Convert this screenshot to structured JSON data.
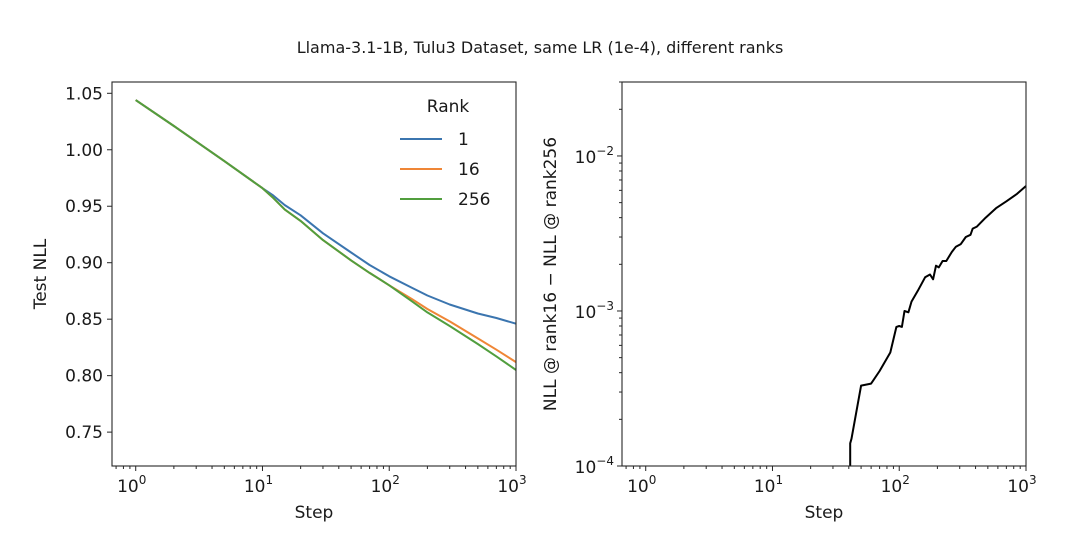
{
  "chart_data": [
    {
      "type": "line",
      "suptitle": "Llama-3.1-1B, Tulu3 Dataset, same LR (1e-4), different ranks",
      "title": "",
      "xlabel": "Step",
      "ylabel": "Test NLL",
      "xscale": "log",
      "xlim": [
        0.65,
        1000
      ],
      "ylim": [
        0.72,
        1.06
      ],
      "xticks": [
        1,
        10,
        100,
        1000
      ],
      "xtick_labels": [
        {
          "base": "10",
          "exp": "0"
        },
        {
          "base": "10",
          "exp": "1"
        },
        {
          "base": "10",
          "exp": "2"
        },
        {
          "base": "10",
          "exp": "3"
        }
      ],
      "yticks": [
        0.75,
        0.8,
        0.85,
        0.9,
        0.95,
        1.0,
        1.05
      ],
      "ytick_labels": [
        "0.75",
        "0.80",
        "0.85",
        "0.90",
        "0.95",
        "1.00",
        "1.05"
      ],
      "grid": false,
      "legend": {
        "title": "Rank",
        "placement": "top-right"
      },
      "series": [
        {
          "name": "1",
          "color": "#3b75af",
          "x": [
            1,
            2,
            5,
            10,
            12,
            15,
            20,
            30,
            50,
            70,
            100,
            150,
            200,
            300,
            500,
            700,
            1000
          ],
          "y": [
            1.044,
            1.021,
            0.99,
            0.966,
            0.96,
            0.951,
            0.942,
            0.926,
            0.909,
            0.898,
            0.888,
            0.878,
            0.871,
            0.863,
            0.855,
            0.851,
            0.846
          ]
        },
        {
          "name": "16",
          "color": "#ef8636",
          "x": [
            1,
            2,
            5,
            10,
            12,
            15,
            20,
            30,
            50,
            70,
            100,
            150,
            200,
            300,
            500,
            700,
            1000
          ],
          "y": [
            1.044,
            1.021,
            0.99,
            0.966,
            0.958,
            0.947,
            0.937,
            0.92,
            0.902,
            0.891,
            0.88,
            0.868,
            0.859,
            0.848,
            0.833,
            0.823,
            0.812
          ]
        },
        {
          "name": "256",
          "color": "#519e3e",
          "x": [
            1,
            2,
            5,
            10,
            12,
            15,
            20,
            30,
            50,
            70,
            100,
            150,
            200,
            300,
            500,
            700,
            1000
          ],
          "y": [
            1.044,
            1.021,
            0.99,
            0.966,
            0.958,
            0.947,
            0.937,
            0.92,
            0.902,
            0.891,
            0.88,
            0.866,
            0.856,
            0.844,
            0.828,
            0.817,
            0.805
          ]
        }
      ]
    },
    {
      "type": "line",
      "title": "",
      "xlabel": "Step",
      "ylabel": "NLL @ rank16 − NLL @ rank256",
      "xscale": "log",
      "yscale": "log",
      "xlim": [
        0.65,
        1000
      ],
      "ylim": [
        0.0001,
        0.03
      ],
      "xticks": [
        1,
        10,
        100,
        1000
      ],
      "xtick_labels": [
        {
          "base": "10",
          "exp": "0"
        },
        {
          "base": "10",
          "exp": "1"
        },
        {
          "base": "10",
          "exp": "2"
        },
        {
          "base": "10",
          "exp": "3"
        }
      ],
      "yticks": [
        0.0001,
        0.001,
        0.01
      ],
      "ytick_labels": [
        {
          "base": "10",
          "exp": "−4"
        },
        {
          "base": "10",
          "exp": "−3"
        },
        {
          "base": "10",
          "exp": "−2"
        }
      ],
      "grid": false,
      "series": [
        {
          "name": "rank16 - rank256",
          "color": "#000000",
          "x": [
            41,
            41,
            42,
            50,
            60,
            70,
            85,
            95,
            100,
            105,
            110,
            118,
            125,
            140,
            160,
            175,
            185,
            195,
            205,
            220,
            235,
            260,
            280,
            306,
            335,
            365,
            380,
            410,
            480,
            580,
            700,
            850,
            1000
          ],
          "y": [
            0.0001,
            0.00014,
            0.00015,
            0.00033,
            0.00034,
            0.00041,
            0.00054,
            0.00079,
            0.0008,
            0.00079,
            0.001,
            0.00098,
            0.00115,
            0.00135,
            0.00165,
            0.00172,
            0.0016,
            0.00196,
            0.00191,
            0.0021,
            0.0021,
            0.0024,
            0.0026,
            0.0027,
            0.003,
            0.0031,
            0.0034,
            0.0035,
            0.004,
            0.0046,
            0.0051,
            0.0057,
            0.0064
          ]
        }
      ]
    }
  ]
}
